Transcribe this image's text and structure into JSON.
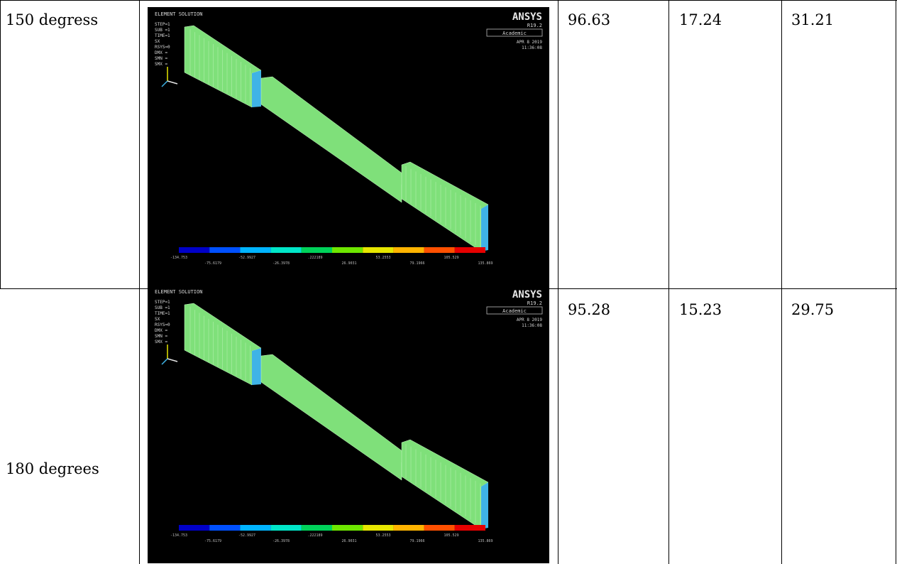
{
  "rows": [
    {
      "angle": "150 degress",
      "values": [
        "96.63",
        "17.24",
        "31.21"
      ],
      "screenshot": {
        "brand": "ANSYS",
        "version": "R19.2",
        "edition": "Academic",
        "heading": "ELEMENT SOLUTION",
        "info_lines": [
          "STEP=1",
          "SUB =1",
          "TIME=1",
          "SX",
          "RSYS=0",
          "DMX =",
          "SMN =",
          "SMX ="
        ],
        "date": "APR  8 2019",
        "time": "11:36:08",
        "legend_values": [
          "-134.753",
          "-75.6179",
          "-52.9927",
          "-26.3978",
          ".222189",
          "26.9031",
          "53.2553",
          "79.1966",
          "105.529",
          "135.869"
        ]
      }
    },
    {
      "angle": "180 degrees",
      "values": [
        "95.28",
        "15.23",
        "29.75"
      ],
      "screenshot": {
        "brand": "ANSYS",
        "version": "R19.2",
        "edition": "Academic",
        "heading": "ELEMENT SOLUTION",
        "info_lines": [
          "STEP=1",
          "SUB =1",
          "TIME=1",
          "SX",
          "RSYS=0",
          "DMX =",
          "SMN =",
          "SMX ="
        ],
        "date": "APR  8 2019",
        "time": "11:36:08",
        "legend_values": [
          "-134.753",
          "-75.6179",
          "-52.9927",
          "-26.3978",
          ".222189",
          "26.9031",
          "53.2553",
          "79.1966",
          "105.529",
          "135.869"
        ]
      }
    }
  ],
  "legend_colors": [
    "#0000c8",
    "#0050ff",
    "#00b4ff",
    "#00e6c8",
    "#00d25a",
    "#6ee600",
    "#e6e600",
    "#ffb400",
    "#ff5000",
    "#e60000"
  ],
  "model_color": "#7fe07a",
  "accent_color": "#3fb3e6"
}
